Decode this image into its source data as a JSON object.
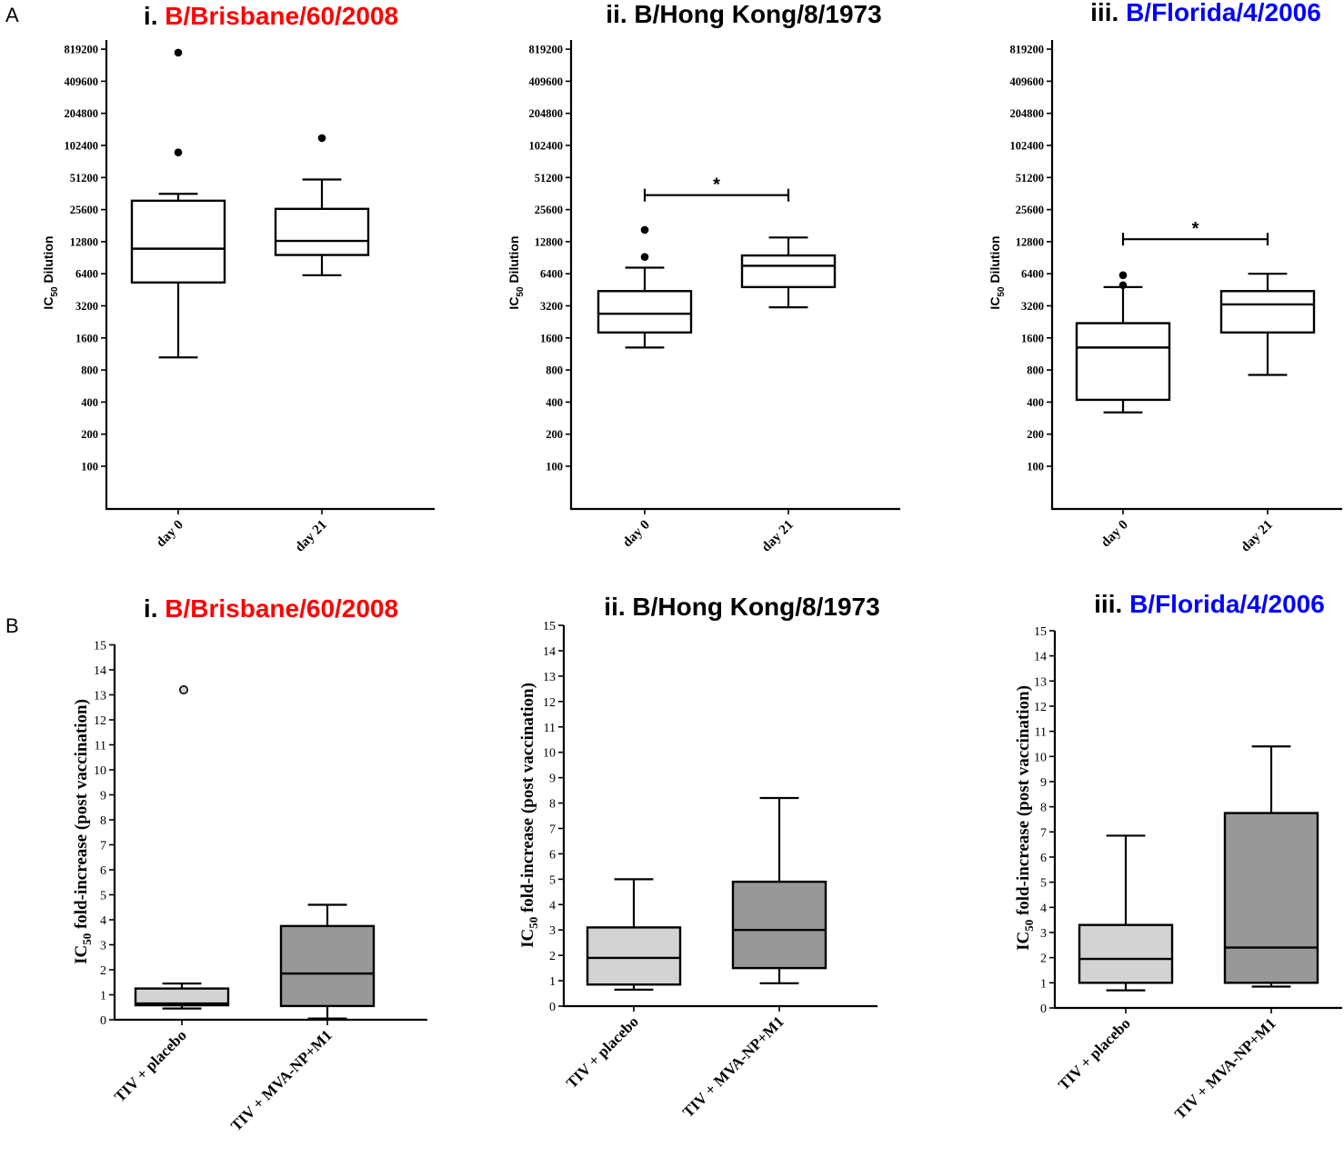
{
  "panel_labels": [
    "A",
    "B"
  ],
  "colors": {
    "red": "#ff0000",
    "blue": "#0000ff",
    "black": "#000000",
    "light_box": "#d3d3d3",
    "dark_box": "#989898"
  },
  "chart_data": [
    {
      "id": "A1",
      "type": "box",
      "scale": "log2",
      "title_prefix": "i. ",
      "title_strain": "B/Brisbane/60/2008",
      "title_color": "#ff0000",
      "ylabel_main": "IC",
      "ylabel_sub": "50",
      "ylabel_rest": " Dilution",
      "ticks": [
        100,
        200,
        400,
        800,
        1600,
        3200,
        6400,
        12800,
        25600,
        51200,
        102400,
        204800,
        409600,
        819200
      ],
      "tick_labels": [
        "100",
        "200",
        "400",
        "800",
        "1600",
        "3200",
        "6400",
        "12800",
        "25600",
        "51200",
        "102400",
        "204800",
        "409600",
        "819200"
      ],
      "categories": [
        "day 0",
        "day 21"
      ],
      "boxes": [
        {
          "min": 1050,
          "q1": 5300,
          "median": 11000,
          "q3": 31000,
          "max": 36000,
          "outliers": [
            760000,
            88000
          ]
        },
        {
          "min": 6200,
          "q1": 9600,
          "median": 13000,
          "q3": 26000,
          "max": 49000,
          "outliers": [
            120000
          ]
        }
      ],
      "significance": null
    },
    {
      "id": "A2",
      "type": "box",
      "scale": "log2",
      "title_prefix": "ii. ",
      "title_strain": "B/Hong Kong/8/1973",
      "title_color": "#000000",
      "ylabel_main": "IC",
      "ylabel_sub": "50",
      "ylabel_rest": " Dilution",
      "ticks": [
        100,
        200,
        400,
        800,
        1600,
        3200,
        6400,
        12800,
        25600,
        51200,
        102400,
        204800,
        409600,
        819200
      ],
      "tick_labels": [
        "100",
        "200",
        "400",
        "800",
        "1600",
        "3200",
        "6400",
        "12800",
        "25600",
        "51200",
        "102400",
        "204800",
        "409600",
        "819200"
      ],
      "categories": [
        "day 0",
        "day 21"
      ],
      "boxes": [
        {
          "min": 1300,
          "q1": 1800,
          "median": 2700,
          "q3": 4400,
          "max": 7300,
          "outliers": [
            16500,
            9200
          ]
        },
        {
          "min": 3100,
          "q1": 4800,
          "median": 7600,
          "q3": 9500,
          "max": 14000,
          "outliers": []
        }
      ],
      "significance": {
        "label": "*",
        "level": 35000
      }
    },
    {
      "id": "A3",
      "type": "box",
      "scale": "log2",
      "title_prefix": "iii. ",
      "title_strain": "B/Florida/4/2006",
      "title_color": "#0000ff",
      "ylabel_main": "IC",
      "ylabel_sub": "50",
      "ylabel_rest": " Dilution",
      "ticks": [
        100,
        200,
        400,
        800,
        1600,
        3200,
        6400,
        12800,
        25600,
        51200,
        102400,
        204800,
        409600,
        819200
      ],
      "tick_labels": [
        "100",
        "200",
        "400",
        "800",
        "1600",
        "3200",
        "6400",
        "12800",
        "25600",
        "51200",
        "102400",
        "204800",
        "409600",
        "819200"
      ],
      "categories": [
        "day 0",
        "day 21"
      ],
      "boxes": [
        {
          "min": 320,
          "q1": 420,
          "median": 1300,
          "q3": 2200,
          "max": 4800,
          "outliers": [
            6200,
            5000
          ]
        },
        {
          "min": 720,
          "q1": 1800,
          "median": 3300,
          "q3": 4400,
          "max": 6400,
          "outliers": []
        }
      ],
      "significance": {
        "label": "*",
        "level": 13500
      }
    },
    {
      "id": "B1",
      "type": "box",
      "scale": "linear",
      "title_prefix": "i. ",
      "title_strain": "B/Brisbane/60/2008",
      "title_color": "#ff0000",
      "ylabel_main": "IC",
      "ylabel_sub": "50",
      "ylabel_rest": " fold-increase (post vaccination)",
      "ylim": [
        0,
        15
      ],
      "ticks": [
        0,
        1,
        2,
        3,
        4,
        5,
        6,
        7,
        8,
        9,
        10,
        11,
        12,
        13,
        14,
        15
      ],
      "tick_labels": [
        "0",
        "1",
        "2",
        "3",
        "4",
        "5",
        "6",
        "7",
        "8",
        "9",
        "10",
        "11",
        "12",
        "13",
        "14",
        "15"
      ],
      "categories": [
        "TIV + placebo",
        "TIV + MVA-NP+M1"
      ],
      "boxes": [
        {
          "min": 0.45,
          "q1": 0.58,
          "median": 0.65,
          "q3": 1.25,
          "max": 1.45,
          "outliers": [
            13.2
          ],
          "fill": "#d3d3d3"
        },
        {
          "min": 0.05,
          "q1": 0.55,
          "median": 1.85,
          "q3": 3.75,
          "max": 4.6,
          "outliers": [],
          "fill": "#989898"
        }
      ],
      "significance": null
    },
    {
      "id": "B2",
      "type": "box",
      "scale": "linear",
      "title_prefix": "ii. ",
      "title_strain": "B/Hong Kong/8/1973",
      "title_color": "#000000",
      "ylabel_main": "IC",
      "ylabel_sub": "50",
      "ylabel_rest": " fold-increase (post vaccination)",
      "ylim": [
        0,
        15
      ],
      "ticks": [
        0,
        1,
        2,
        3,
        4,
        5,
        6,
        7,
        8,
        9,
        10,
        11,
        12,
        13,
        14,
        15
      ],
      "tick_labels": [
        "0",
        "1",
        "2",
        "3",
        "4",
        "5",
        "6",
        "7",
        "8",
        "9",
        "10",
        "11",
        "12",
        "13",
        "14",
        "15"
      ],
      "categories": [
        "TIV + placebo",
        "TIV + MVA-NP+M1"
      ],
      "boxes": [
        {
          "min": 0.65,
          "q1": 0.85,
          "median": 1.9,
          "q3": 3.1,
          "max": 5.0,
          "outliers": [],
          "fill": "#d3d3d3"
        },
        {
          "min": 0.9,
          "q1": 1.5,
          "median": 3.0,
          "q3": 4.9,
          "max": 8.2,
          "outliers": [],
          "fill": "#989898"
        }
      ],
      "significance": null
    },
    {
      "id": "B3",
      "type": "box",
      "scale": "linear",
      "title_prefix": "iii. ",
      "title_strain": "B/Florida/4/2006",
      "title_color": "#0000ff",
      "ylabel_main": "IC",
      "ylabel_sub": "50",
      "ylabel_rest": " fold-increase (post vaccination)",
      "ylim": [
        0,
        15
      ],
      "ticks": [
        0,
        1,
        2,
        3,
        4,
        5,
        6,
        7,
        8,
        9,
        10,
        11,
        12,
        13,
        14,
        15
      ],
      "tick_labels": [
        "0",
        "1",
        "2",
        "3",
        "4",
        "5",
        "6",
        "7",
        "8",
        "9",
        "10",
        "11",
        "12",
        "13",
        "14",
        "15"
      ],
      "categories": [
        "TIV + placebo",
        "TIV + MVA-NP+M1"
      ],
      "boxes": [
        {
          "min": 0.7,
          "q1": 1.0,
          "median": 1.95,
          "q3": 3.3,
          "max": 6.85,
          "outliers": [],
          "fill": "#d3d3d3"
        },
        {
          "min": 0.85,
          "q1": 1.0,
          "median": 2.4,
          "q3": 7.75,
          "max": 10.4,
          "outliers": [],
          "fill": "#989898"
        }
      ],
      "significance": null
    }
  ]
}
